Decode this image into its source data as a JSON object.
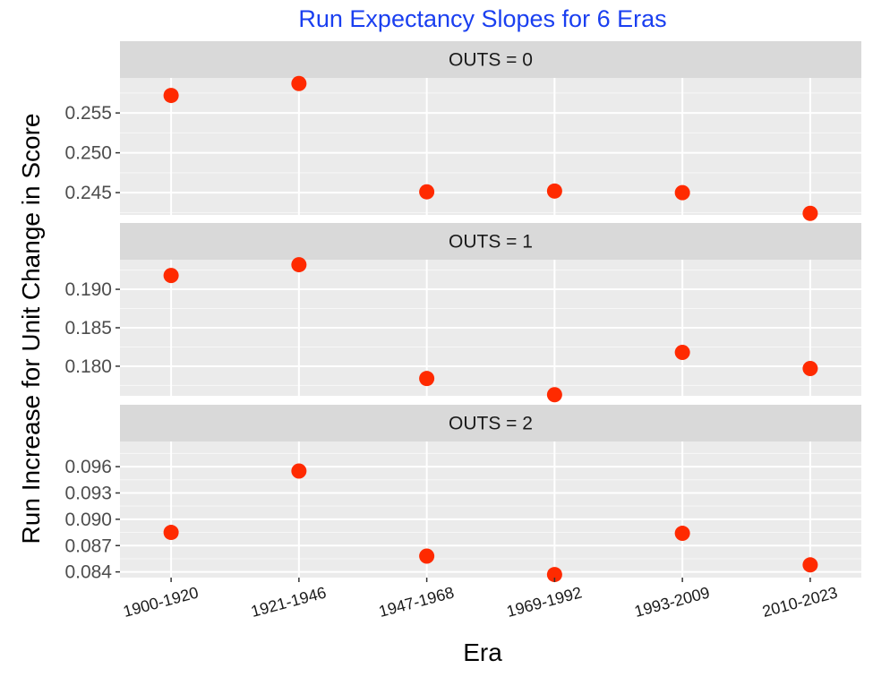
{
  "chart_data": {
    "type": "scatter",
    "title": "Run Expectancy Slopes for 6 Eras",
    "xlabel": "Era",
    "ylabel": "Run Increase for Unit Change in Score",
    "categories": [
      "1900-1920",
      "1921-1946",
      "1947-1968",
      "1969-1992",
      "1993-2009",
      "2010-2023"
    ],
    "facet_var": "OUTS",
    "facet_scales": "free_y",
    "grid": true,
    "colors": {
      "title": "#1a3ff0",
      "point": "#ff2a00",
      "panel_bg": "#ebebeb",
      "strip_bg": "#d9d9d9",
      "grid": "#ffffff"
    },
    "panels": [
      {
        "strip": "OUTS = 0",
        "values": [
          0.2572,
          0.2587,
          0.2451,
          0.2452,
          0.245,
          0.2424
        ],
        "ylim": [
          0.2422,
          0.2594
        ],
        "yticks": [
          0.245,
          0.25,
          0.255
        ],
        "yticklabels": [
          "0.245",
          "0.250",
          "0.255"
        ]
      },
      {
        "strip": "OUTS = 1",
        "values": [
          0.1918,
          0.1932,
          0.1784,
          0.1763,
          0.1818,
          0.1797
        ],
        "ylim": [
          0.17615,
          0.19385
        ],
        "yticks": [
          0.18,
          0.185,
          0.19
        ],
        "yticklabels": [
          "0.180",
          "0.185",
          "0.190"
        ]
      },
      {
        "strip": "OUTS = 2",
        "values": [
          0.0885,
          0.0955,
          0.0858,
          0.0837,
          0.0884,
          0.0848
        ],
        "ylim": [
          0.08335,
          0.09887
        ],
        "yticks": [
          0.084,
          0.087,
          0.09,
          0.093,
          0.096
        ],
        "yticklabels": [
          "0.084",
          "0.087",
          "0.090",
          "0.093",
          "0.096"
        ]
      }
    ]
  }
}
